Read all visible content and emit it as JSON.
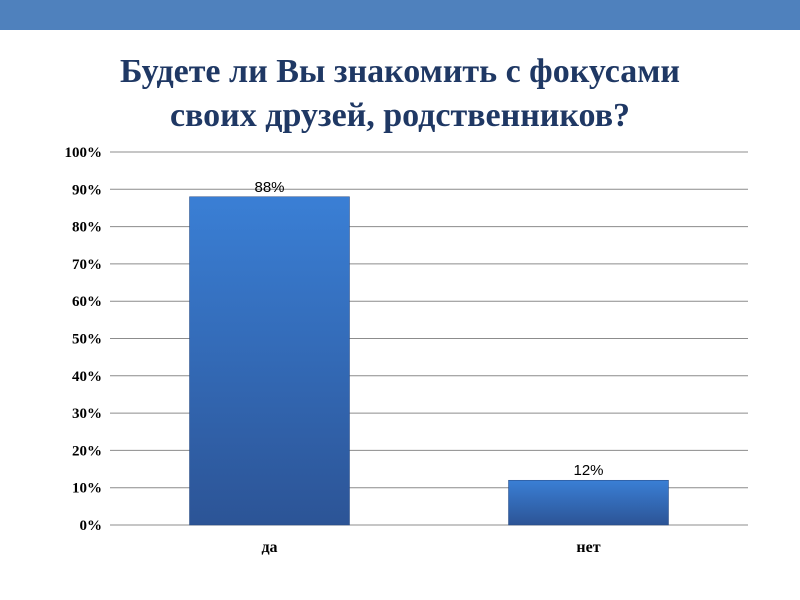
{
  "slide": {
    "title_line1": "Будете ли Вы знакомить с фокусами",
    "title_line2": "своих друзей, родственников?"
  },
  "colors": {
    "top_bar": "#4f81bd",
    "title": "#1f3864",
    "bar_top": "#3a7fd5",
    "bar_bottom": "#2c5496",
    "grid": "#8c8c8c"
  },
  "chart_data": {
    "type": "bar",
    "title": "Будете ли Вы знакомить с фокусами своих друзей, родственников?",
    "categories": [
      "да",
      "нет"
    ],
    "values": [
      88,
      12
    ],
    "data_labels": [
      "88%",
      "12%"
    ],
    "y_ticks": [
      "0%",
      "10%",
      "20%",
      "30%",
      "40%",
      "50%",
      "60%",
      "70%",
      "80%",
      "90%",
      "100%"
    ],
    "ylim": [
      0,
      100
    ],
    "grid": true,
    "legend": "none"
  }
}
